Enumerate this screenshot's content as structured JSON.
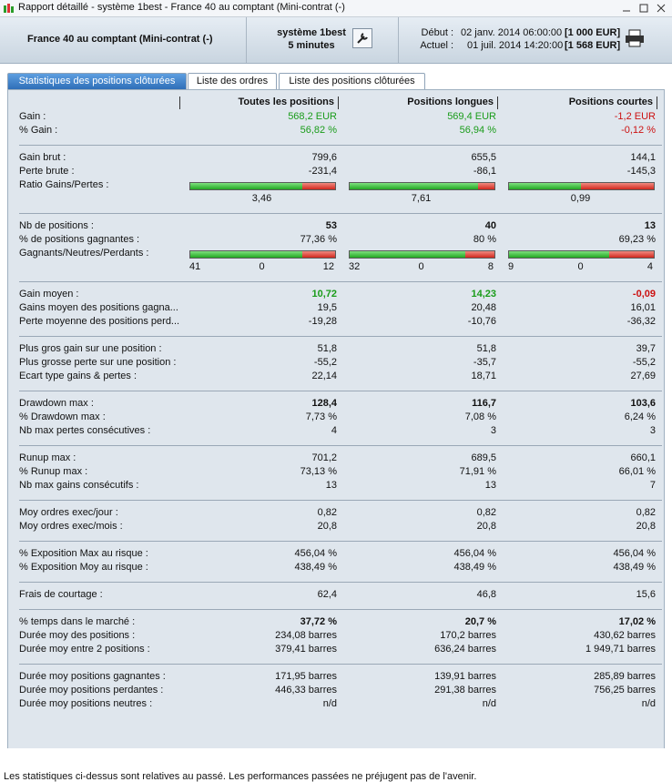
{
  "window": {
    "title": "Rapport détaillé - système 1best - France 40 au comptant (Mini-contrat  (-)"
  },
  "header": {
    "instrument": "France 40 au comptant (Mini-contrat  (-)",
    "system": "système 1best",
    "period": "5 minutes",
    "start_label": "Début :",
    "start_date": "02 janv. 2014 06:00:00",
    "start_capital": "[1 000 EUR]",
    "end_label": "Actuel :",
    "end_date": "01 juil. 2014 14:20:00",
    "end_capital": "[1 568 EUR]"
  },
  "tabs": [
    "Statistiques des positions clôturées",
    "Liste des ordres",
    "Liste des positions clôturées"
  ],
  "columns": [
    "Toutes les positions",
    "Positions longues",
    "Positions courtes"
  ],
  "sections": [
    {
      "rows": [
        {
          "label": "Gain :",
          "cells": [
            "568,2 EUR",
            "569,4 EUR",
            "-1,2 EUR"
          ],
          "colors": [
            "#1a9c1a",
            "#1a9c1a",
            "#cc1111"
          ]
        },
        {
          "label": "% Gain :",
          "cells": [
            "56,82 %",
            "56,94 %",
            "-0,12 %"
          ],
          "colors": [
            "#1a9c1a",
            "#1a9c1a",
            "#cc1111"
          ]
        }
      ]
    },
    {
      "rows": [
        {
          "label": "Gain brut :",
          "cells": [
            "799,6",
            "655,5",
            "144,1"
          ]
        },
        {
          "label": "Perte brute :",
          "cells": [
            "-231,4",
            "-86,1",
            "-145,3"
          ]
        },
        {
          "label": "Ratio Gains/Pertes :",
          "values": [
            3.46,
            7.61,
            0.99
          ],
          "value_labels": [
            "3,46",
            "7,61",
            "0,99"
          ]
        }
      ]
    },
    {
      "rows": [
        {
          "label": "Nb de positions :",
          "cells": [
            "53",
            "40",
            "13"
          ],
          "bold": true
        },
        {
          "label": "% de positions gagnantes :",
          "cells": [
            "77,36 %",
            "80 %",
            "69,23 %"
          ]
        },
        {
          "label": "Gagnants/Neutres/Perdants :",
          "counts": [
            [
              41,
              0,
              12
            ],
            [
              32,
              0,
              8
            ],
            [
              9,
              0,
              4
            ]
          ]
        }
      ]
    },
    {
      "rows": [
        {
          "label": "Gain moyen :",
          "cells": [
            "10,72",
            "14,23",
            "-0,09"
          ],
          "bold": true,
          "colors": [
            "#1a9c1a",
            "#1a9c1a",
            "#cc1111"
          ]
        },
        {
          "label": "Gains moyen des positions gagna...",
          "cells": [
            "19,5",
            "20,48",
            "16,01"
          ]
        },
        {
          "label": "Perte moyenne des positions perd...",
          "cells": [
            "-19,28",
            "-10,76",
            "-36,32"
          ]
        }
      ]
    },
    {
      "rows": [
        {
          "label": "Plus gros gain sur une position :",
          "cells": [
            "51,8",
            "51,8",
            "39,7"
          ]
        },
        {
          "label": "Plus grosse perte sur une position :",
          "cells": [
            "-55,2",
            "-35,7",
            "-55,2"
          ]
        },
        {
          "label": "Ecart type gains & pertes :",
          "cells": [
            "22,14",
            "18,71",
            "27,69"
          ]
        }
      ]
    },
    {
      "rows": [
        {
          "label": "Drawdown max :",
          "cells": [
            "128,4",
            "116,7",
            "103,6"
          ],
          "bold": true
        },
        {
          "label": "% Drawdown max :",
          "cells": [
            "7,73 %",
            "7,08 %",
            "6,24 %"
          ]
        },
        {
          "label": "Nb max pertes consécutives :",
          "cells": [
            "4",
            "3",
            "3"
          ]
        }
      ]
    },
    {
      "rows": [
        {
          "label": "Runup max :",
          "cells": [
            "701,2",
            "689,5",
            "660,1"
          ]
        },
        {
          "label": "% Runup max :",
          "cells": [
            "73,13 %",
            "71,91 %",
            "66,01 %"
          ]
        },
        {
          "label": "Nb max gains consécutifs :",
          "cells": [
            "13",
            "13",
            "7"
          ]
        }
      ]
    },
    {
      "rows": [
        {
          "label": "Moy ordres exec/jour :",
          "cells": [
            "0,82",
            "0,82",
            "0,82"
          ]
        },
        {
          "label": "Moy ordres exec/mois :",
          "cells": [
            "20,8",
            "20,8",
            "20,8"
          ]
        }
      ]
    },
    {
      "rows": [
        {
          "label": "% Exposition Max au risque :",
          "cells": [
            "456,04 %",
            "456,04 %",
            "456,04 %"
          ]
        },
        {
          "label": "% Exposition Moy au risque :",
          "cells": [
            "438,49 %",
            "438,49 %",
            "438,49 %"
          ]
        }
      ]
    },
    {
      "rows": [
        {
          "label": "Frais de courtage :",
          "cells": [
            "62,4",
            "46,8",
            "15,6"
          ]
        }
      ]
    },
    {
      "rows": [
        {
          "label": "% temps dans le marché :",
          "cells": [
            "37,72 %",
            "20,7 %",
            "17,02 %"
          ],
          "bold": true
        },
        {
          "label": "Durée moy des positions :",
          "cells": [
            "234,08 barres",
            "170,2 barres",
            "430,62 barres"
          ]
        },
        {
          "label": "Durée moy entre 2 positions :",
          "cells": [
            "379,41 barres",
            "636,24 barres",
            "1 949,71 barres"
          ]
        }
      ]
    },
    {
      "rows": [
        {
          "label": "Durée moy positions gagnantes :",
          "cells": [
            "171,95 barres",
            "139,91 barres",
            "285,89 barres"
          ]
        },
        {
          "label": "Durée moy positions perdantes :",
          "cells": [
            "446,33 barres",
            "291,38 barres",
            "756,25 barres"
          ]
        },
        {
          "label": "Durée moy positions neutres :",
          "cells": [
            "n/d",
            "n/d",
            "n/d"
          ]
        }
      ]
    }
  ],
  "footer": "Les statistiques ci-dessus sont relatives au passé. Les performances passées ne préjugent pas de l'avenir."
}
